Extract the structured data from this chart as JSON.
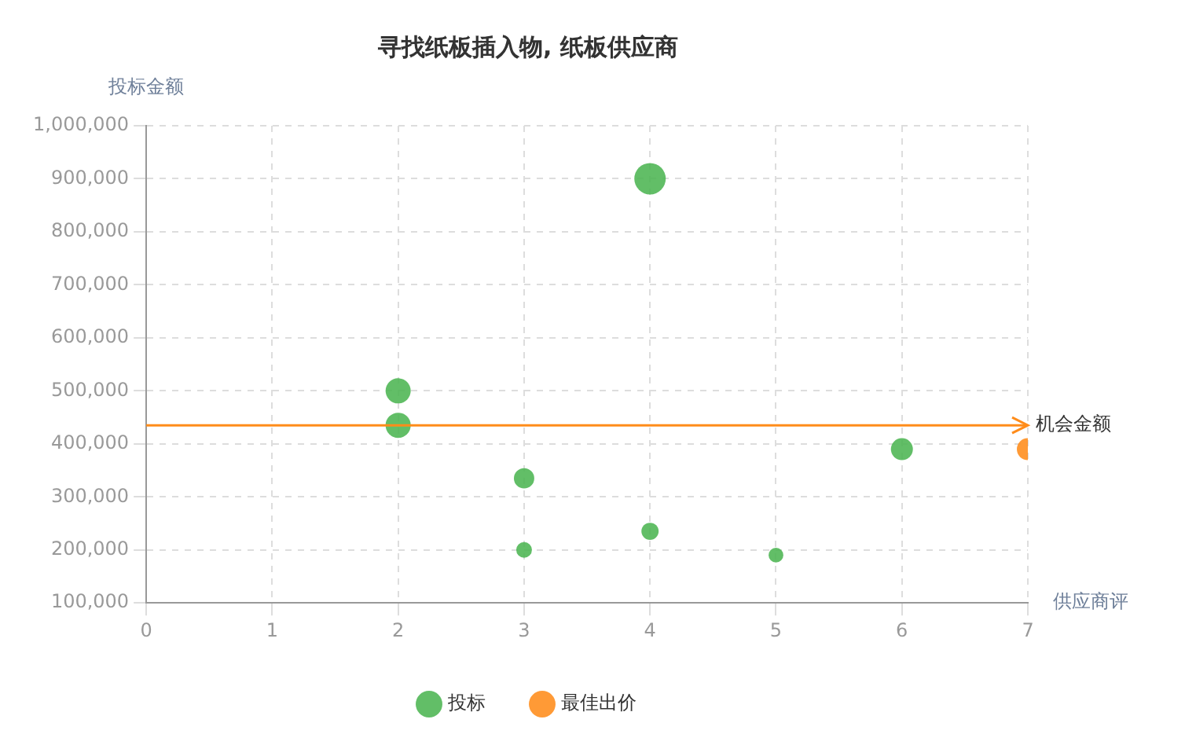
{
  "chart_data": {
    "type": "bubble",
    "title": "寻找纸板插入物, 纸板供应商",
    "xlabel": "供应商评",
    "ylabel": "投标金额",
    "series": [
      {
        "name": "投标",
        "color": "#4cb552",
        "x": [
          2,
          2,
          4,
          3,
          3,
          4,
          5,
          6
        ],
        "values": [
          500000,
          435000,
          900000,
          335000,
          200000,
          235000,
          190000,
          390000
        ],
        "sizes": [
          0.64,
          0.64,
          1,
          0.42,
          0.25,
          0.3,
          0.22,
          0.49
        ]
      },
      {
        "name": "最佳出价",
        "color": "#ff8c1a",
        "x": [
          7
        ],
        "values": [
          390000
        ],
        "sizes": [
          0.49
        ]
      }
    ],
    "xlim": [
      0,
      7
    ],
    "xticks": [
      0,
      1,
      2,
      3,
      4,
      5,
      6,
      7
    ],
    "ylim": [
      100000,
      1000000
    ],
    "yticks": [
      {
        "value": 100000,
        "label": "100,000"
      },
      {
        "value": 200000,
        "label": "200,000"
      },
      {
        "value": 300000,
        "label": "300,000"
      },
      {
        "value": 400000,
        "label": "400,000"
      },
      {
        "value": 500000,
        "label": "500,000"
      },
      {
        "value": 600000,
        "label": "600,000"
      },
      {
        "value": 700000,
        "label": "700,000"
      },
      {
        "value": 800000,
        "label": "800,000"
      },
      {
        "value": 900000,
        "label": "900,000"
      },
      {
        "value": 1000000,
        "label": "1,000,000"
      }
    ],
    "ref_lines": [
      {
        "axis": "y",
        "value": 435000,
        "label": "机会金额",
        "color": "#ff8c1a"
      }
    ],
    "grid": true,
    "legend": "bottom"
  }
}
